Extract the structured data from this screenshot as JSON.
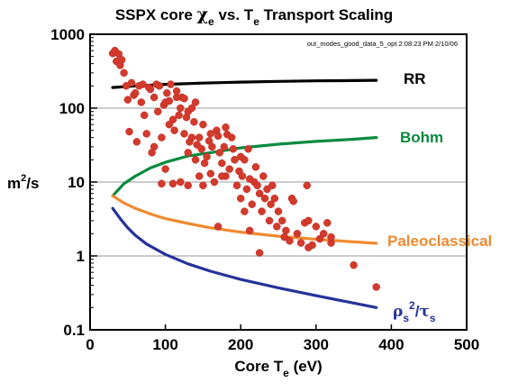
{
  "chart_data": {
    "type": "scatter",
    "title": {
      "prefix": "SSPX core ",
      "chi": "χ",
      "chi_sub": "e",
      "middle": " vs. T",
      "t_sub": "e",
      "suffix": " Transport Scaling"
    },
    "stamp": "out_modes_good_data_5_opt 2:08:23 PM 2/10/06",
    "xlabel": {
      "main": "Core T",
      "sub": "e",
      "unit": " (eV)"
    },
    "ylabel": {
      "main": "m",
      "sup": "2",
      "rest": "/s"
    },
    "xlim": [
      0,
      500
    ],
    "ylim": [
      0.1,
      1000
    ],
    "yscale": "log",
    "x_ticks": [
      0,
      100,
      200,
      300,
      400,
      500
    ],
    "y_ticks": [
      {
        "value": 0.1,
        "label": "0.1"
      },
      {
        "value": 1,
        "label": "1"
      },
      {
        "value": 10,
        "label": "10"
      },
      {
        "value": 100,
        "label": "100"
      },
      {
        "value": 1000,
        "label": "1000"
      }
    ],
    "grid": "horizontal at decades",
    "series": [
      {
        "name": "RR",
        "color": "#000000",
        "kind": "line",
        "points": [
          [
            30,
            190
          ],
          [
            60,
            200
          ],
          [
            100,
            210
          ],
          [
            150,
            218
          ],
          [
            200,
            225
          ],
          [
            250,
            230
          ],
          [
            300,
            234
          ],
          [
            350,
            236
          ],
          [
            380,
            238
          ]
        ]
      },
      {
        "name": "Bohm",
        "color": "#0a8a3e",
        "kind": "line",
        "points": [
          [
            30,
            6.5
          ],
          [
            45,
            9.5
          ],
          [
            60,
            12
          ],
          [
            80,
            15.5
          ],
          [
            100,
            18.5
          ],
          [
            130,
            22.5
          ],
          [
            160,
            25
          ],
          [
            200,
            29
          ],
          [
            250,
            32.5
          ],
          [
            300,
            35.5
          ],
          [
            350,
            38
          ],
          [
            380,
            40
          ]
        ]
      },
      {
        "name": "Paleoclassical",
        "color": "#ef8a30",
        "kind": "line",
        "points": [
          [
            30,
            6.5
          ],
          [
            45,
            5.2
          ],
          [
            60,
            4.4
          ],
          [
            80,
            3.7
          ],
          [
            100,
            3.2
          ],
          [
            130,
            2.75
          ],
          [
            160,
            2.4
          ],
          [
            200,
            2.1
          ],
          [
            250,
            1.85
          ],
          [
            300,
            1.68
          ],
          [
            350,
            1.55
          ],
          [
            380,
            1.48
          ]
        ]
      },
      {
        "name": {
          "rho": "ρ",
          "rho_sub": "s",
          "sq": "2",
          "slash": "/",
          "tau": "τ",
          "tau_sub": "s"
        },
        "color": "#25329a",
        "kind": "line",
        "points": [
          [
            30,
            4.4
          ],
          [
            40,
            3.2
          ],
          [
            50,
            2.4
          ],
          [
            60,
            1.9
          ],
          [
            75,
            1.45
          ],
          [
            100,
            1.05
          ],
          [
            130,
            0.78
          ],
          [
            160,
            0.62
          ],
          [
            200,
            0.48
          ],
          [
            250,
            0.37
          ],
          [
            300,
            0.29
          ],
          [
            350,
            0.23
          ],
          [
            380,
            0.2
          ]
        ]
      },
      {
        "name": "",
        "color": "#d43a2c",
        "kind": "scatter",
        "points": [
          [
            30,
            550
          ],
          [
            33,
            600
          ],
          [
            35,
            430
          ],
          [
            38,
            540
          ],
          [
            40,
            380
          ],
          [
            42,
            450
          ],
          [
            45,
            300
          ],
          [
            48,
            200
          ],
          [
            50,
            130
          ],
          [
            52,
            48
          ],
          [
            55,
            220
          ],
          [
            58,
            150
          ],
          [
            60,
            160
          ],
          [
            62,
            35
          ],
          [
            65,
            200
          ],
          [
            68,
            120
          ],
          [
            70,
            210
          ],
          [
            72,
            80
          ],
          [
            75,
            45
          ],
          [
            78,
            190
          ],
          [
            80,
            180
          ],
          [
            82,
            25
          ],
          [
            85,
            30
          ],
          [
            88,
            210
          ],
          [
            90,
            90
          ],
          [
            92,
            200
          ],
          [
            95,
            40
          ],
          [
            98,
            110
          ],
          [
            100,
            120
          ],
          [
            102,
            160
          ],
          [
            105,
            60
          ],
          [
            107,
            210
          ],
          [
            110,
            70
          ],
          [
            112,
            50
          ],
          [
            115,
            140
          ],
          [
            118,
            80
          ],
          [
            120,
            100
          ],
          [
            122,
            140
          ],
          [
            125,
            45
          ],
          [
            128,
            75
          ],
          [
            130,
            90
          ],
          [
            132,
            35
          ],
          [
            135,
            40
          ],
          [
            138,
            65
          ],
          [
            140,
            20
          ],
          [
            142,
            32
          ],
          [
            145,
            12
          ],
          [
            148,
            28
          ],
          [
            150,
            9
          ],
          [
            152,
            18
          ],
          [
            155,
            22
          ],
          [
            158,
            36
          ],
          [
            160,
            13
          ],
          [
            162,
            30
          ],
          [
            165,
            10
          ],
          [
            168,
            50
          ],
          [
            170,
            42
          ],
          [
            172,
            25
          ],
          [
            175,
            18
          ],
          [
            178,
            30
          ],
          [
            180,
            12
          ],
          [
            182,
            44
          ],
          [
            185,
            15
          ],
          [
            188,
            40
          ],
          [
            190,
            28
          ],
          [
            192,
            20
          ],
          [
            195,
            9
          ],
          [
            198,
            14
          ],
          [
            200,
            6
          ],
          [
            202,
            12
          ],
          [
            205,
            20
          ],
          [
            208,
            8
          ],
          [
            210,
            28
          ],
          [
            212,
            11
          ],
          [
            215,
            5
          ],
          [
            218,
            10
          ],
          [
            220,
            16
          ],
          [
            222,
            9
          ],
          [
            225,
            7
          ],
          [
            228,
            4
          ],
          [
            230,
            12
          ],
          [
            232,
            6
          ],
          [
            235,
            8
          ],
          [
            238,
            3
          ],
          [
            240,
            5
          ],
          [
            242,
            9
          ],
          [
            245,
            6
          ],
          [
            248,
            2.5
          ],
          [
            250,
            4
          ],
          [
            255,
            3
          ],
          [
            258,
            1.8
          ],
          [
            260,
            2.2
          ],
          [
            265,
            1.6
          ],
          [
            268,
            6
          ],
          [
            270,
            5.5
          ],
          [
            275,
            2
          ],
          [
            280,
            1.5
          ],
          [
            285,
            2.8
          ],
          [
            288,
            9
          ],
          [
            290,
            1.3
          ],
          [
            295,
            1.4
          ],
          [
            300,
            2.5
          ],
          [
            305,
            1.7
          ],
          [
            310,
            2
          ],
          [
            315,
            2.8
          ],
          [
            320,
            1.5
          ],
          [
            350,
            0.75
          ],
          [
            380,
            0.38
          ],
          [
            100,
            15
          ],
          [
            110,
            9.5
          ],
          [
            95,
            9.5
          ],
          [
            130,
            25
          ],
          [
            170,
            2.5
          ],
          [
            205,
            4
          ],
          [
            225,
            1.1
          ],
          [
            290,
            3
          ],
          [
            320,
            1.8
          ],
          [
            85,
            140
          ],
          [
            115,
            170
          ],
          [
            140,
            120
          ],
          [
            150,
            60
          ],
          [
            160,
            45
          ],
          [
            180,
            55
          ],
          [
            120,
            10
          ],
          [
            130,
            9
          ],
          [
            145,
            40
          ],
          [
            105,
            125
          ],
          [
            125,
            135
          ],
          [
            135,
            100
          ],
          [
            175,
            12
          ],
          [
            200,
            22
          ],
          [
            212,
            2.2
          ]
        ]
      }
    ]
  }
}
